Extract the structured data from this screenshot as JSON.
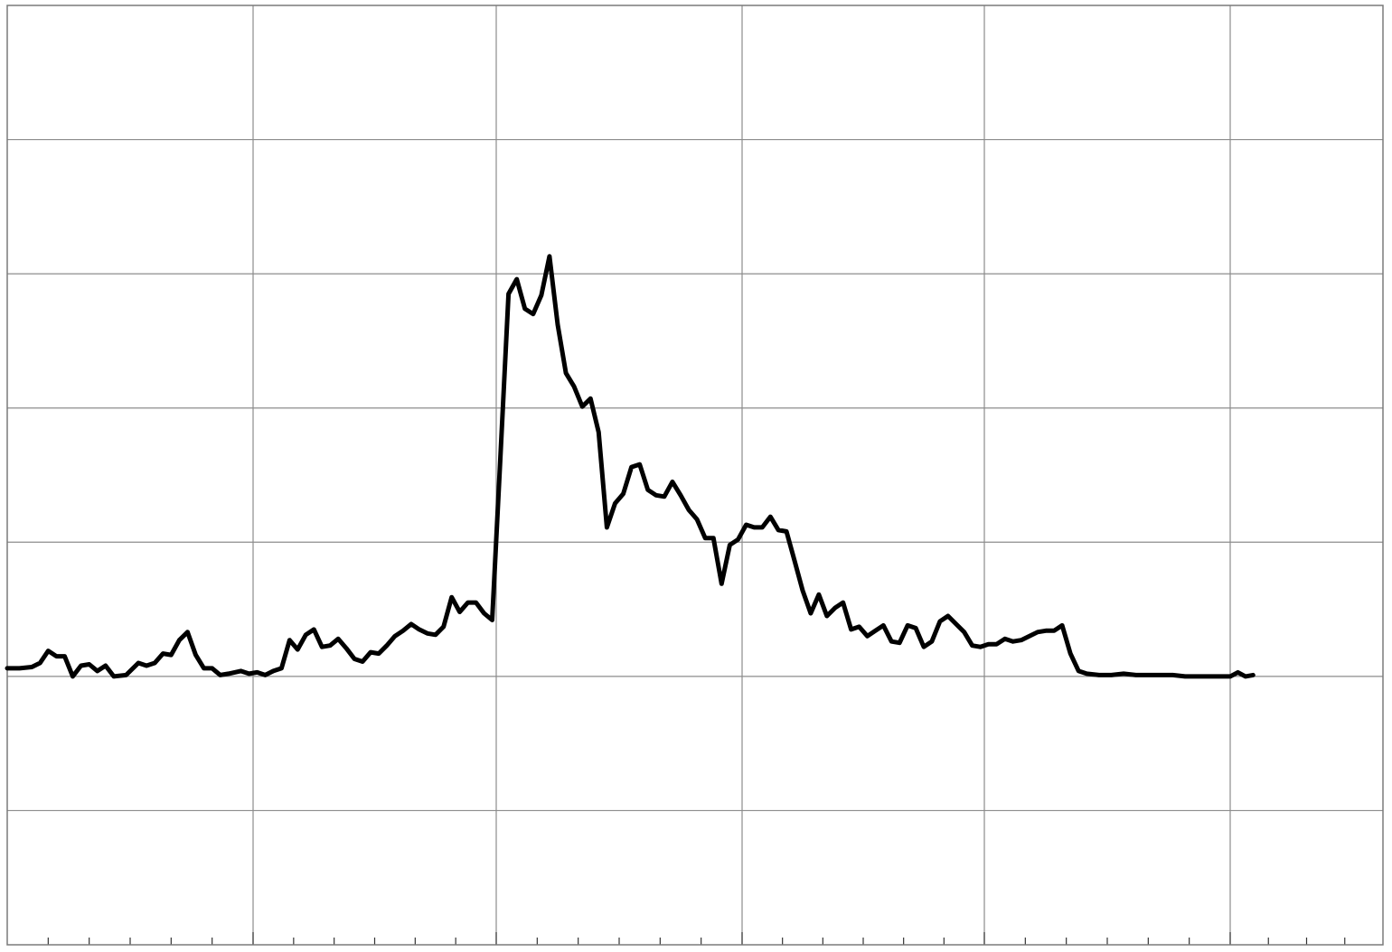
{
  "chart_data": {
    "type": "line",
    "title": "",
    "xlabel": "",
    "ylabel": "",
    "grid": true,
    "legend": "none",
    "xlim": [
      0,
      170
    ],
    "ylim": [
      -2,
      5
    ],
    "x_major_ticks": [
      0,
      30,
      60,
      90,
      120,
      150
    ],
    "x_minor_step": 5,
    "y_major_ticks": [
      -2,
      -1,
      0,
      1,
      2,
      3,
      4,
      5
    ],
    "line_color": "#000000",
    "grid_color": "#8c8c8c",
    "series": [
      {
        "points": [
          [
            0,
            0.06
          ],
          [
            1.5,
            0.06
          ],
          [
            3,
            0.07
          ],
          [
            4,
            0.1
          ],
          [
            5,
            0.19
          ],
          [
            6,
            0.15
          ],
          [
            7,
            0.15
          ],
          [
            8,
            0.0
          ],
          [
            9,
            0.08
          ],
          [
            10,
            0.09
          ],
          [
            11,
            0.04
          ],
          [
            12,
            0.08
          ],
          [
            13,
            0.0
          ],
          [
            14.5,
            0.01
          ],
          [
            16,
            0.1
          ],
          [
            17,
            0.08
          ],
          [
            18,
            0.1
          ],
          [
            19,
            0.17
          ],
          [
            20,
            0.16
          ],
          [
            21,
            0.27
          ],
          [
            22,
            0.33
          ],
          [
            23,
            0.16
          ],
          [
            24,
            0.06
          ],
          [
            25,
            0.06
          ],
          [
            26,
            0.01
          ],
          [
            27,
            0.02
          ],
          [
            28.5,
            0.04
          ],
          [
            29.5,
            0.02
          ],
          [
            30.5,
            0.03
          ],
          [
            31.5,
            0.01
          ],
          [
            32.5,
            0.04
          ],
          [
            33.5,
            0.06
          ],
          [
            34.5,
            0.27
          ],
          [
            35.5,
            0.2
          ],
          [
            36.5,
            0.31
          ],
          [
            37.5,
            0.35
          ],
          [
            38.5,
            0.22
          ],
          [
            39.5,
            0.23
          ],
          [
            40.5,
            0.28
          ],
          [
            41.5,
            0.21
          ],
          [
            42.5,
            0.13
          ],
          [
            43.5,
            0.11
          ],
          [
            44.5,
            0.18
          ],
          [
            45.5,
            0.17
          ],
          [
            46.5,
            0.23
          ],
          [
            47.5,
            0.3
          ],
          [
            48.5,
            0.34
          ],
          [
            49.5,
            0.39
          ],
          [
            50.5,
            0.35
          ],
          [
            51.5,
            0.32
          ],
          [
            52.5,
            0.31
          ],
          [
            53.5,
            0.37
          ],
          [
            54.5,
            0.59
          ],
          [
            55.5,
            0.48
          ],
          [
            56.5,
            0.55
          ],
          [
            57.5,
            0.55
          ],
          [
            58.5,
            0.47
          ],
          [
            59.5,
            0.42
          ],
          [
            60.5,
            1.62
          ],
          [
            61.5,
            2.85
          ],
          [
            62.5,
            2.96
          ],
          [
            63.5,
            2.74
          ],
          [
            64.5,
            2.7
          ],
          [
            65.5,
            2.84
          ],
          [
            66.5,
            3.13
          ],
          [
            67.5,
            2.62
          ],
          [
            68.5,
            2.26
          ],
          [
            69.5,
            2.16
          ],
          [
            70.5,
            2.01
          ],
          [
            71.5,
            2.07
          ],
          [
            72.5,
            1.82
          ],
          [
            73.5,
            1.11
          ],
          [
            74.5,
            1.29
          ],
          [
            75.5,
            1.36
          ],
          [
            76.5,
            1.56
          ],
          [
            77.5,
            1.58
          ],
          [
            78.5,
            1.39
          ],
          [
            79.5,
            1.35
          ],
          [
            80.5,
            1.34
          ],
          [
            81.5,
            1.45
          ],
          [
            82.5,
            1.35
          ],
          [
            83.5,
            1.24
          ],
          [
            84.5,
            1.17
          ],
          [
            85.5,
            1.03
          ],
          [
            86.5,
            1.03
          ],
          [
            87.5,
            0.69
          ],
          [
            88.5,
            0.98
          ],
          [
            89.5,
            1.02
          ],
          [
            90.5,
            1.13
          ],
          [
            91.5,
            1.11
          ],
          [
            92.5,
            1.11
          ],
          [
            93.5,
            1.19
          ],
          [
            94.5,
            1.09
          ],
          [
            95.5,
            1.08
          ],
          [
            96.5,
            0.86
          ],
          [
            97.5,
            0.64
          ],
          [
            98.5,
            0.47
          ],
          [
            99.5,
            0.61
          ],
          [
            100.5,
            0.45
          ],
          [
            101.5,
            0.51
          ],
          [
            102.5,
            0.55
          ],
          [
            103.5,
            0.35
          ],
          [
            104.5,
            0.37
          ],
          [
            105.5,
            0.3
          ],
          [
            106.5,
            0.34
          ],
          [
            107.5,
            0.38
          ],
          [
            108.5,
            0.26
          ],
          [
            109.5,
            0.25
          ],
          [
            110.5,
            0.38
          ],
          [
            111.5,
            0.36
          ],
          [
            112.5,
            0.22
          ],
          [
            113.5,
            0.26
          ],
          [
            114.5,
            0.41
          ],
          [
            115.5,
            0.45
          ],
          [
            116.5,
            0.39
          ],
          [
            117.5,
            0.33
          ],
          [
            118.5,
            0.23
          ],
          [
            119.5,
            0.22
          ],
          [
            120.5,
            0.24
          ],
          [
            121.5,
            0.24
          ],
          [
            122.5,
            0.28
          ],
          [
            123.5,
            0.26
          ],
          [
            124.5,
            0.27
          ],
          [
            125.5,
            0.3
          ],
          [
            126.5,
            0.33
          ],
          [
            127.5,
            0.34
          ],
          [
            128.5,
            0.34
          ],
          [
            129.5,
            0.38
          ],
          [
            130.5,
            0.17
          ],
          [
            131.5,
            0.04
          ],
          [
            132.5,
            0.02
          ],
          [
            134,
            0.01
          ],
          [
            135.5,
            0.01
          ],
          [
            137,
            0.02
          ],
          [
            138.5,
            0.01
          ],
          [
            140,
            0.01
          ],
          [
            141.5,
            0.01
          ],
          [
            143,
            0.01
          ],
          [
            144.5,
            0.0
          ],
          [
            146,
            0.0
          ],
          [
            147.5,
            0.0
          ],
          [
            149,
            0.0
          ],
          [
            150,
            0.0
          ],
          [
            151,
            0.03
          ],
          [
            152,
            0.0
          ],
          [
            153,
            0.01
          ]
        ]
      }
    ]
  }
}
